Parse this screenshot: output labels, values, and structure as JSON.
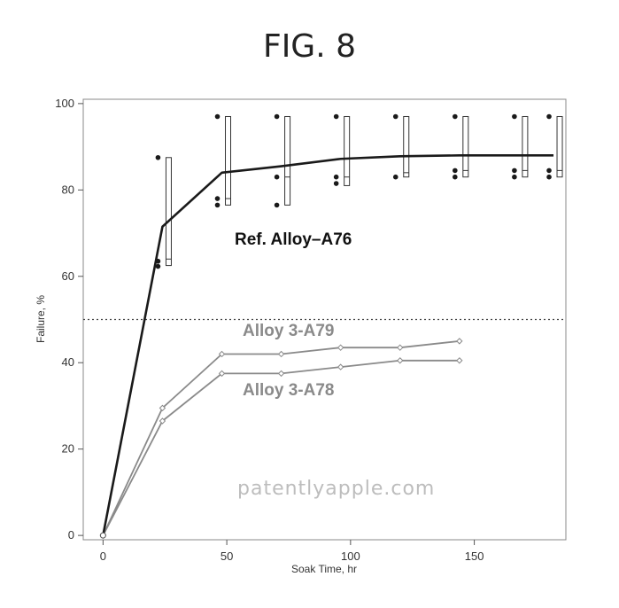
{
  "figure_title": "FIG. 8",
  "watermark": "patentlyapple.com",
  "chart_data": {
    "type": "line",
    "xlabel": "Soak Time, hr",
    "ylabel": "Failure, %",
    "xlim": [
      -8,
      187
    ],
    "ylim": [
      -1,
      101
    ],
    "xticks": [
      0,
      50,
      100,
      150
    ],
    "yticks": [
      0,
      20,
      40,
      60,
      80,
      100
    ],
    "grid": false,
    "reference_line": {
      "y": 50,
      "style": "dotted"
    },
    "series": [
      {
        "name": "Ref. Alloy–A76",
        "color": "#1a1a1a",
        "x": [
          0,
          24,
          48,
          72,
          96,
          120,
          144,
          168,
          182
        ],
        "y": [
          0,
          71.5,
          84,
          85.5,
          87.2,
          87.8,
          88,
          88,
          88
        ],
        "points": [
          {
            "x": 24,
            "y": [
              87.5,
              63.5,
              62.3
            ]
          },
          {
            "x": 48,
            "y": [
              97,
              78,
              76.5
            ]
          },
          {
            "x": 72,
            "y": [
              97,
              83,
              76.5
            ]
          },
          {
            "x": 96,
            "y": [
              97,
              83,
              81.5
            ]
          },
          {
            "x": 120,
            "y": [
              97,
              83
            ]
          },
          {
            "x": 144,
            "y": [
              97,
              84.5,
              83
            ]
          },
          {
            "x": 168,
            "y": [
              97,
              84.5,
              83
            ]
          },
          {
            "x": 182,
            "y": [
              97,
              84.5,
              83
            ]
          }
        ],
        "intervals": [
          {
            "x": 24,
            "low": 62.5,
            "high": 87.5,
            "mid": 64
          },
          {
            "x": 48,
            "low": 76.5,
            "high": 97,
            "mid": 78
          },
          {
            "x": 72,
            "low": 76.5,
            "high": 97,
            "mid": 83
          },
          {
            "x": 96,
            "low": 81,
            "high": 97,
            "mid": 83
          },
          {
            "x": 120,
            "low": 83,
            "high": 97,
            "mid": 84
          },
          {
            "x": 144,
            "low": 83,
            "high": 97,
            "mid": 84.5
          },
          {
            "x": 168,
            "low": 83,
            "high": 97,
            "mid": 84.5
          },
          {
            "x": 182,
            "low": 83,
            "high": 97,
            "mid": 84.5
          }
        ]
      },
      {
        "name": "Alloy 3-A79",
        "color": "#8a8a8a",
        "x": [
          0,
          24,
          48,
          72,
          96,
          120,
          144
        ],
        "y": [
          0,
          29.5,
          42,
          42,
          43.5,
          43.5,
          45
        ]
      },
      {
        "name": "Alloy 3-A78",
        "color": "#8a8a8a",
        "x": [
          0,
          24,
          48,
          72,
          96,
          120,
          144
        ],
        "y": [
          0,
          26.5,
          37.5,
          37.5,
          39,
          40.5,
          40.5
        ]
      }
    ]
  }
}
